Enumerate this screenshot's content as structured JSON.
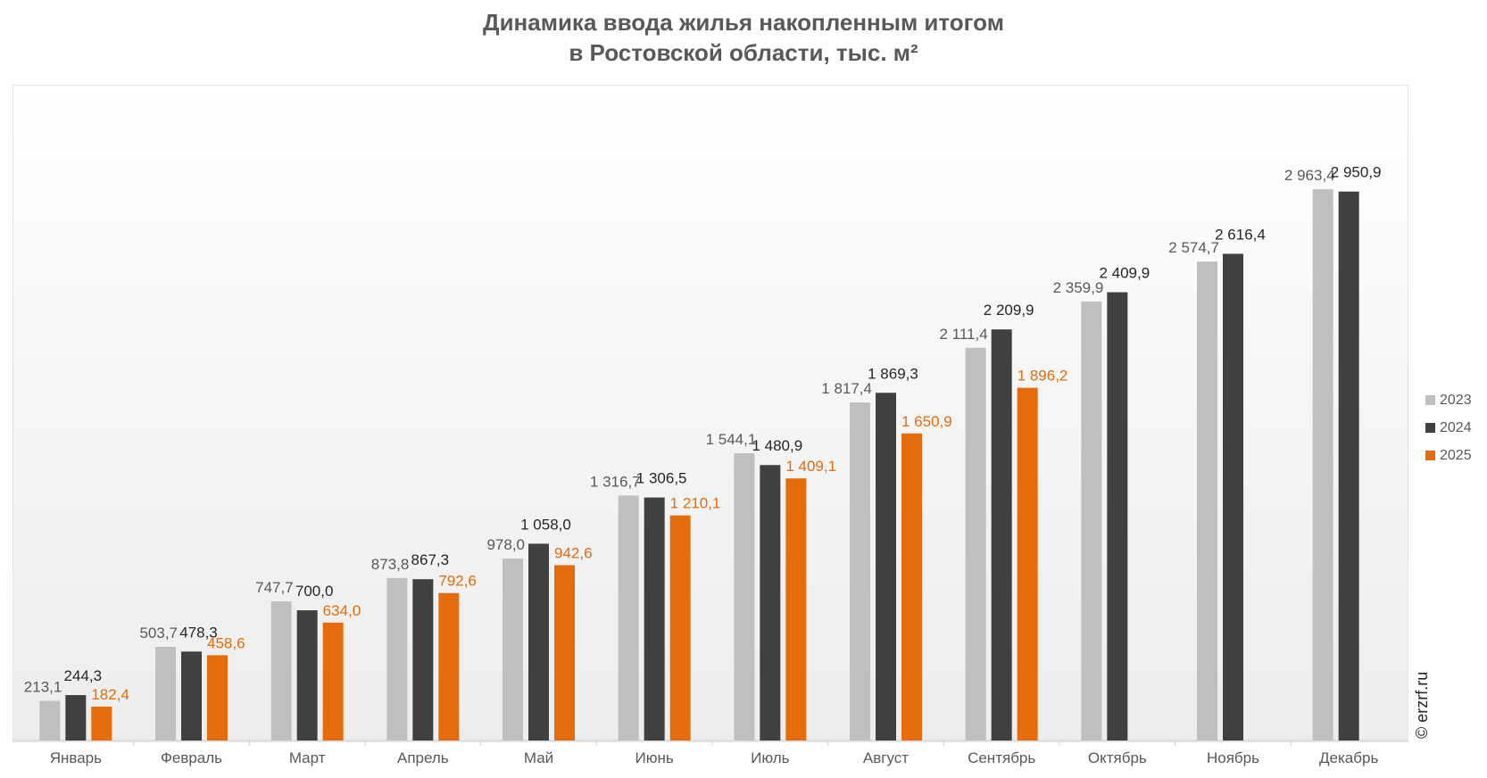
{
  "title_line1": "Динамика ввода жилья накопленным итогом",
  "title_line2": "в Ростовской области, тыс. м²",
  "watermark": "© erzrf.ru",
  "colors": {
    "2023": "#bfbfbf",
    "2024": "#404040",
    "2025": "#e46c0a"
  },
  "chart_data": {
    "type": "bar",
    "title": "Динамика ввода жилья накопленным итогом в Ростовской области, тыс. м²",
    "categories": [
      "Январь",
      "Февраль",
      "Март",
      "Апрель",
      "Май",
      "Июнь",
      "Июль",
      "Август",
      "Сентябрь",
      "Октябрь",
      "Ноябрь",
      "Декабрь"
    ],
    "ylim": [
      0,
      3500
    ],
    "grid": false,
    "legend_position": "right",
    "series": [
      {
        "name": "2023",
        "values": [
          213.1,
          503.7,
          747.7,
          873.8,
          978.0,
          1316.7,
          1544.1,
          1817.4,
          2111.4,
          2359.9,
          2574.7,
          2963.4
        ],
        "labels": [
          "213,1",
          "503,7",
          "747,7",
          "873,8",
          "978,0",
          "1 316,7",
          "1 544,1",
          "1 817,4",
          "2 111,4",
          "2 359,9",
          "2 574,7",
          "2 963,4"
        ]
      },
      {
        "name": "2024",
        "values": [
          244.3,
          478.3,
          700.0,
          867.3,
          1058.0,
          1306.5,
          1480.9,
          1869.3,
          2209.9,
          2409.9,
          2616.4,
          2950.9
        ],
        "labels": [
          "244,3",
          "478,3",
          "700,0",
          "867,3",
          "1 058,0",
          "1 306,5",
          "1 480,9",
          "1 869,3",
          "2 209,9",
          "2 409,9",
          "2 616,4",
          "2 950,9"
        ]
      },
      {
        "name": "2025",
        "values": [
          182.4,
          458.6,
          634.0,
          792.6,
          942.6,
          1210.1,
          1409.1,
          1650.9,
          1896.2,
          null,
          null,
          null
        ],
        "labels": [
          "182,4",
          "458,6",
          "634,0",
          "792,6",
          "942,6",
          "1 210,1",
          "1 409,1",
          "1 650,9",
          "1 896,2",
          "",
          "",
          ""
        ]
      }
    ]
  }
}
